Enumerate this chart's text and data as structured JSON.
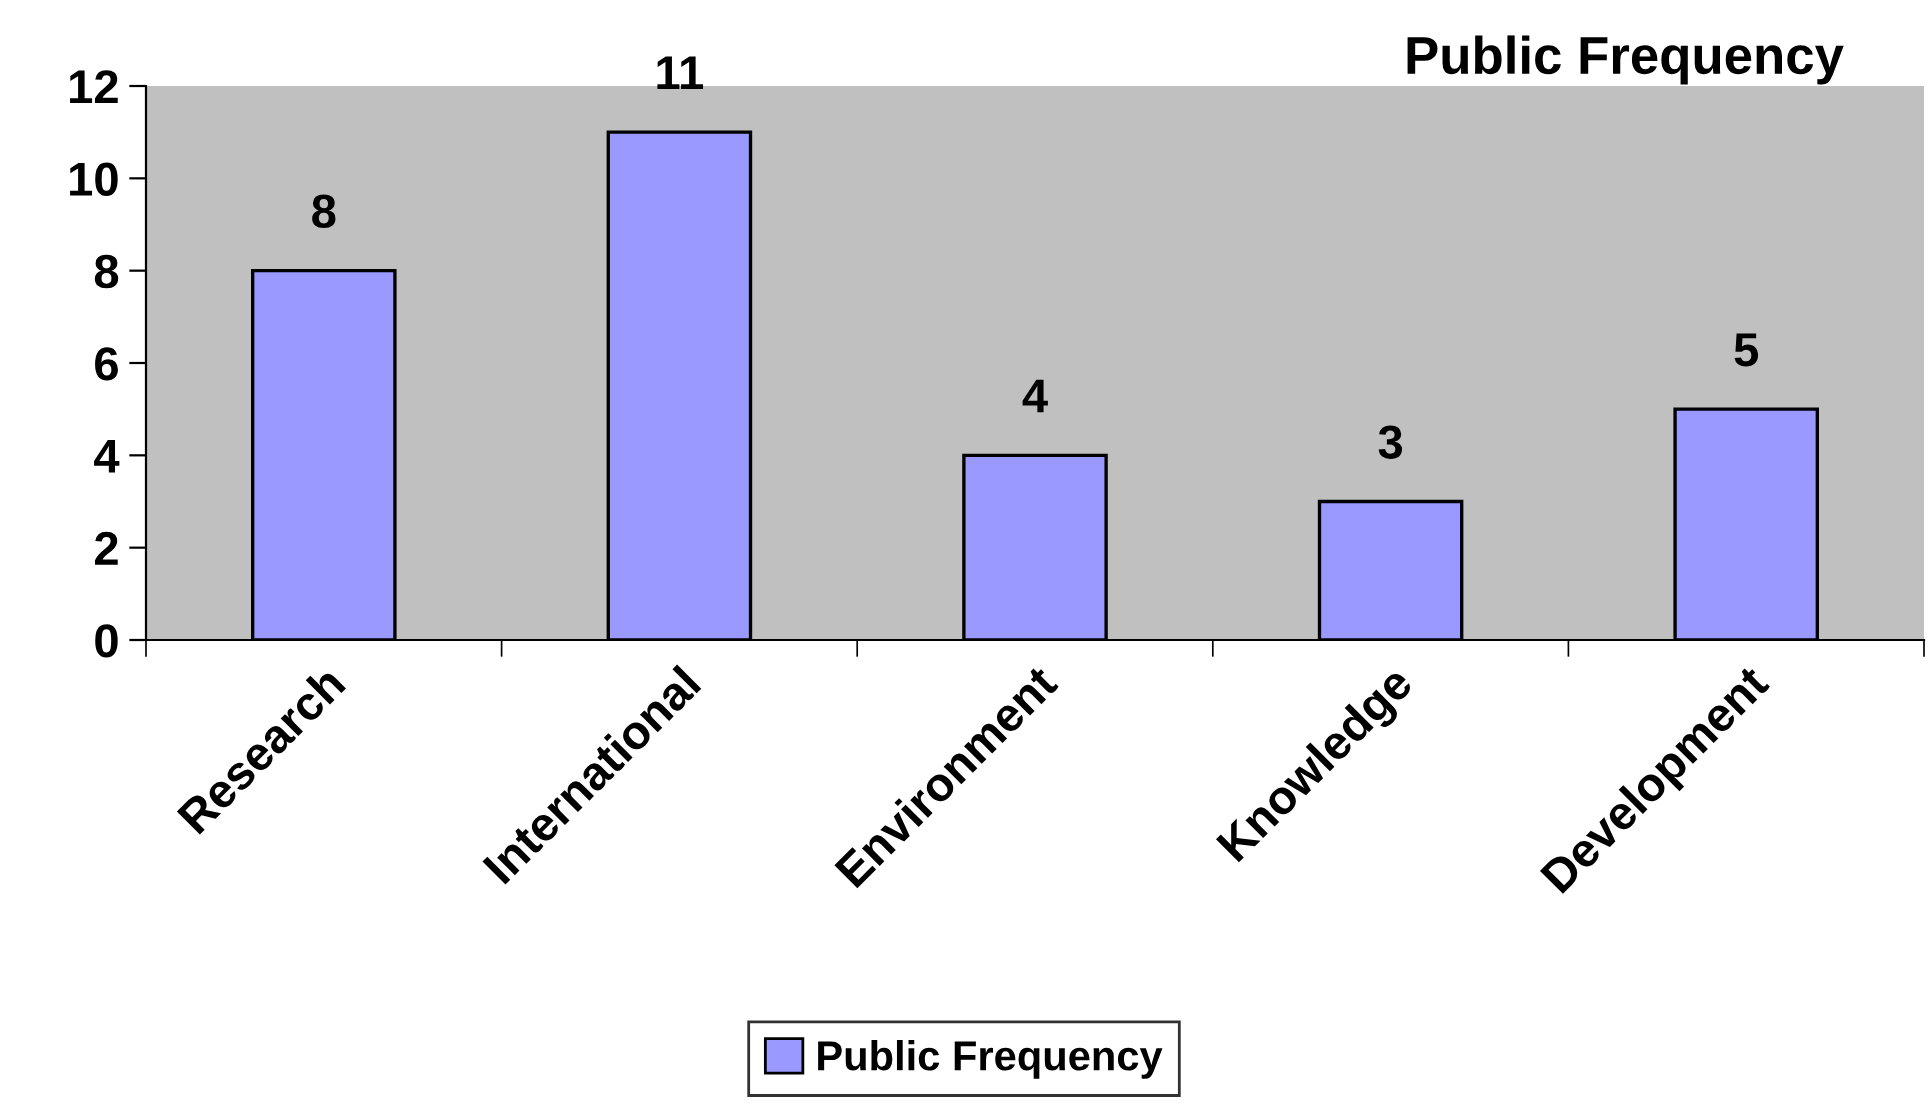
{
  "chart_data": {
    "type": "bar",
    "title": "Public Frequency",
    "categories": [
      "Research",
      "International",
      "Environment",
      "Knowledge",
      "Development"
    ],
    "series": [
      {
        "name": "Public Frequency",
        "color": "#9999ff",
        "values": [
          8,
          11,
          4,
          3,
          5
        ]
      }
    ],
    "ylim": [
      0,
      12
    ],
    "yticks": [
      0,
      2,
      4,
      6,
      8,
      10,
      12
    ],
    "grid": false,
    "legend": "bottom",
    "data_labels": true
  }
}
